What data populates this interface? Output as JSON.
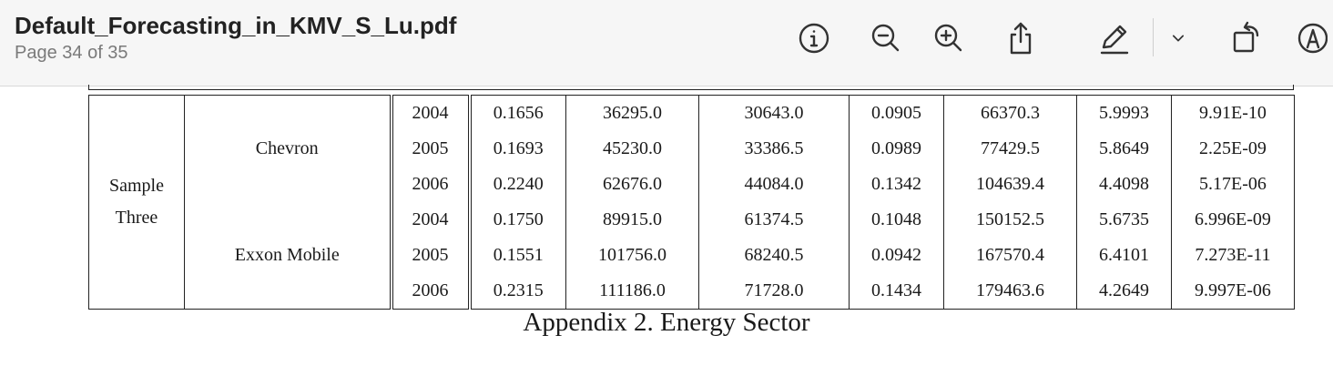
{
  "window": {
    "title": "Default_Forecasting_in_KMV_S_Lu.pdf",
    "page_indicator": "Page 34 of 35"
  },
  "toolbar": {
    "buttons": [
      {
        "name": "info-button",
        "icon": "info-icon"
      },
      {
        "name": "zoom-out-button",
        "icon": "zoom-out-icon"
      },
      {
        "name": "zoom-in-button",
        "icon": "zoom-in-icon"
      },
      {
        "name": "share-button",
        "icon": "share-icon"
      },
      {
        "name": "markup-button",
        "icon": "pencil-icon"
      },
      {
        "name": "markup-menu-button",
        "icon": "chevron-down-icon"
      },
      {
        "name": "rotate-button",
        "icon": "rotate-icon"
      },
      {
        "name": "annotate-button",
        "icon": "markup-circle-icon"
      }
    ]
  },
  "table": {
    "group_label_line1": "Sample",
    "group_label_line2": "Three",
    "companies": [
      "Chevron",
      "Exxon Mobile"
    ],
    "rows": [
      [
        "2004",
        "0.1656",
        "36295.0",
        "30643.0",
        "0.0905",
        "66370.3",
        "5.9993",
        "9.91E-10"
      ],
      [
        "2005",
        "0.1693",
        "45230.0",
        "33386.5",
        "0.0989",
        "77429.5",
        "5.8649",
        "2.25E-09"
      ],
      [
        "2006",
        "0.2240",
        "62676.0",
        "44084.0",
        "0.1342",
        "104639.4",
        "4.4098",
        "5.17E-06"
      ],
      [
        "2004",
        "0.1750",
        "89915.0",
        "61374.5",
        "0.1048",
        "150152.5",
        "5.6735",
        "6.996E-09"
      ],
      [
        "2005",
        "0.1551",
        "101756.0",
        "68240.5",
        "0.0942",
        "167570.4",
        "6.4101",
        "7.273E-11"
      ],
      [
        "2006",
        "0.2315",
        "111186.0",
        "71728.0",
        "0.1434",
        "179463.6",
        "4.2649",
        "9.997E-06"
      ]
    ]
  },
  "caption": "Appendix 2. Energy Sector",
  "colors": {
    "toolbar_bg": "#f6f6f6",
    "icon": "#333333",
    "text": "#1a1a1a"
  }
}
